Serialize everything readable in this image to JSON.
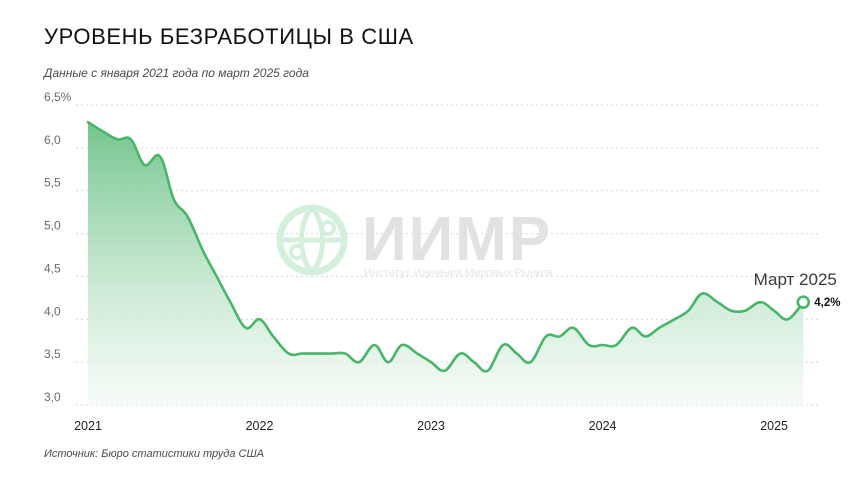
{
  "header": {
    "title": "Уровень безработицы в США",
    "subtitle": "Данные с января 2021 года по март 2025 года"
  },
  "footer": {
    "source": "Источник: Бюро статистики труда США"
  },
  "watermark": {
    "name": "ИИМР",
    "tagline": "Институт Изучения Мировых Рынков"
  },
  "colors": {
    "line": "#48b669",
    "fill_top": "#6cc287",
    "fill_bottom": "#f1f9f3",
    "grid": "#d6d6d6",
    "watermark_icon": "#cdeed6"
  },
  "chart_data": {
    "type": "area",
    "title": "Уровень безработицы в США",
    "subtitle": "Данные с января 2021 года по март 2025 года",
    "xlabel": "",
    "ylabel": "",
    "x_unit": "year (decimal)",
    "y_unit": "percent",
    "xlim": [
      2021.0,
      2025.25
    ],
    "ylim": [
      3.0,
      6.5
    ],
    "grid": true,
    "y_ticks": [
      {
        "value": 3.0,
        "label": "3,0"
      },
      {
        "value": 3.5,
        "label": "3,5"
      },
      {
        "value": 4.0,
        "label": "4,0"
      },
      {
        "value": 4.5,
        "label": "4,5"
      },
      {
        "value": 5.0,
        "label": "5,0"
      },
      {
        "value": 5.5,
        "label": "5,5"
      },
      {
        "value": 6.0,
        "label": "6,0"
      },
      {
        "value": 6.5,
        "label": "6,5%"
      }
    ],
    "x_ticks": [
      {
        "value": 2021,
        "label": "2021"
      },
      {
        "value": 2022,
        "label": "2022"
      },
      {
        "value": 2023,
        "label": "2023"
      },
      {
        "value": 2024,
        "label": "2024"
      },
      {
        "value": 2025,
        "label": "2025"
      }
    ],
    "series": [
      {
        "name": "Уровень безработицы",
        "x": [
          2021.0,
          2021.08,
          2021.17,
          2021.25,
          2021.33,
          2021.42,
          2021.5,
          2021.58,
          2021.67,
          2021.75,
          2021.83,
          2021.92,
          2022.0,
          2022.08,
          2022.17,
          2022.25,
          2022.33,
          2022.42,
          2022.5,
          2022.58,
          2022.67,
          2022.75,
          2022.83,
          2022.92,
          2023.0,
          2023.08,
          2023.17,
          2023.25,
          2023.33,
          2023.42,
          2023.5,
          2023.58,
          2023.67,
          2023.75,
          2023.83,
          2023.92,
          2024.0,
          2024.08,
          2024.17,
          2024.25,
          2024.33,
          2024.42,
          2024.5,
          2024.58,
          2024.67,
          2024.75,
          2024.83,
          2024.92,
          2025.0,
          2025.08,
          2025.17
        ],
        "values": [
          6.3,
          6.2,
          6.1,
          6.1,
          5.8,
          5.9,
          5.4,
          5.2,
          4.8,
          4.5,
          4.2,
          3.9,
          4.0,
          3.8,
          3.6,
          3.6,
          3.6,
          3.6,
          3.6,
          3.5,
          3.7,
          3.5,
          3.7,
          3.6,
          3.5,
          3.4,
          3.6,
          3.5,
          3.4,
          3.7,
          3.6,
          3.5,
          3.8,
          3.8,
          3.9,
          3.7,
          3.7,
          3.7,
          3.9,
          3.8,
          3.9,
          4.0,
          4.1,
          4.3,
          4.2,
          4.1,
          4.1,
          4.2,
          4.1,
          4.0,
          4.2
        ]
      }
    ],
    "annotations": [
      {
        "x": 2025.17,
        "y": 4.2,
        "label": "Март 2025",
        "value_label": "4,2%"
      }
    ]
  }
}
